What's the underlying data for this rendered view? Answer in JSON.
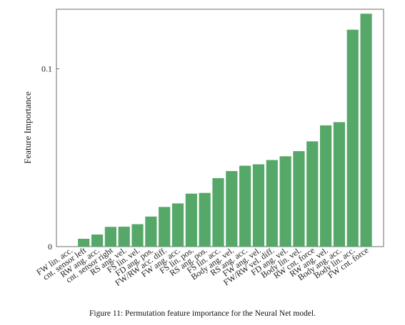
{
  "caption": "Figure 11: Permutation feature importance for the Neural Net model.",
  "chart_data": {
    "type": "bar",
    "title": "",
    "xlabel": "",
    "ylabel": "Feature Importance",
    "ylim": [
      0,
      0.1335
    ],
    "yticks": [
      0,
      0.1
    ],
    "ytick_labels": [
      "0",
      "0.1"
    ],
    "grid": false,
    "bar_color": "#55a868",
    "categories": [
      "FW lin. acc.",
      "cnt. sensor left",
      "RW ang. acc.",
      "cnt. sensor right",
      "RS ang. vel.",
      "FS lin. vel.",
      "FD ang. pos.",
      "FW/RW acc. diff.",
      "FW ang. acc.",
      "FS lin. pos.",
      "RS ang. pos.",
      "FS lin. acc.",
      "Body ang. vel.",
      "RS ang. acc.",
      "FW ang. vel.",
      "FW/RW vel. diff.",
      "FD ang. vel.",
      "Body lin. vel.",
      "RW cnt. force",
      "RW ang. vel.",
      "Body ang. acc.",
      "Body lin. acc.",
      "FW cnt. force"
    ],
    "values": [
      0,
      0.0044,
      0.0068,
      0.0111,
      0.0112,
      0.0126,
      0.0169,
      0.0223,
      0.0243,
      0.0298,
      0.0302,
      0.0385,
      0.0425,
      0.0455,
      0.0463,
      0.0487,
      0.0508,
      0.0537,
      0.0592,
      0.0682,
      0.07,
      0.122,
      0.131
    ]
  }
}
